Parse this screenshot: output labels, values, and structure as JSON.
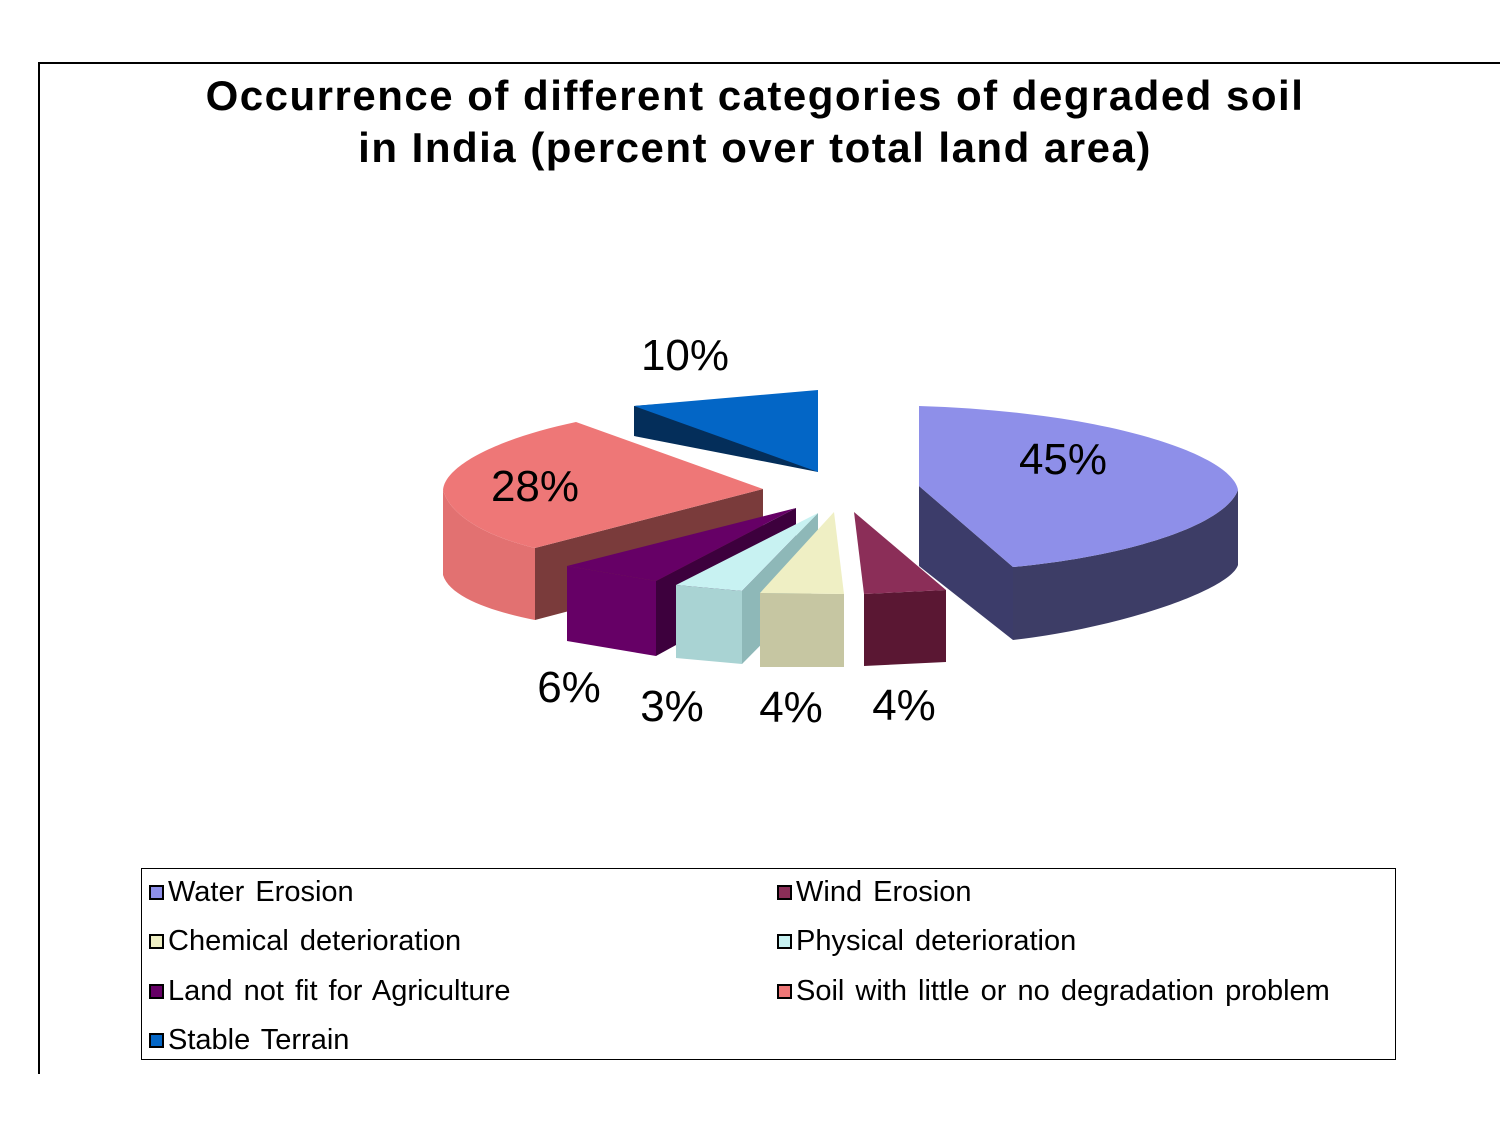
{
  "chart_data": {
    "type": "pie",
    "title": [
      "Occurrence of different categories of degraded soil",
      "in India (percent over total land area)"
    ],
    "slices": [
      {
        "label": "Water Erosion",
        "value": 45,
        "display": "45%",
        "color": "#8E8FE9",
        "side_color": "#3D3D66"
      },
      {
        "label": "Wind Erosion",
        "value": 4,
        "display": "4%",
        "color": "#8B2E58",
        "side_color": "#5A1733"
      },
      {
        "label": "Chemical deterioration",
        "value": 4,
        "display": "4%",
        "color": "#EFEFC4",
        "side_color": "#BEBE96"
      },
      {
        "label": "Physical deterioration",
        "value": 3,
        "display": "3%",
        "color": "#C8F2F2",
        "side_color": "#A3D2D2"
      },
      {
        "label": "Land not fit for Agriculture",
        "value": 6,
        "display": "6%",
        "color": "#660066",
        "side_color": "#4A004A"
      },
      {
        "label": "Soil with little or no degradation problem",
        "value": 28,
        "display": "28%",
        "color": "#EE7777",
        "side_color": "#7A3B3B"
      },
      {
        "label": "Stable Terrain",
        "value": 10,
        "display": "10%",
        "color": "#0366C6",
        "side_color": "#042E5A"
      }
    ],
    "legend_placement": "bottom",
    "grid": false
  }
}
